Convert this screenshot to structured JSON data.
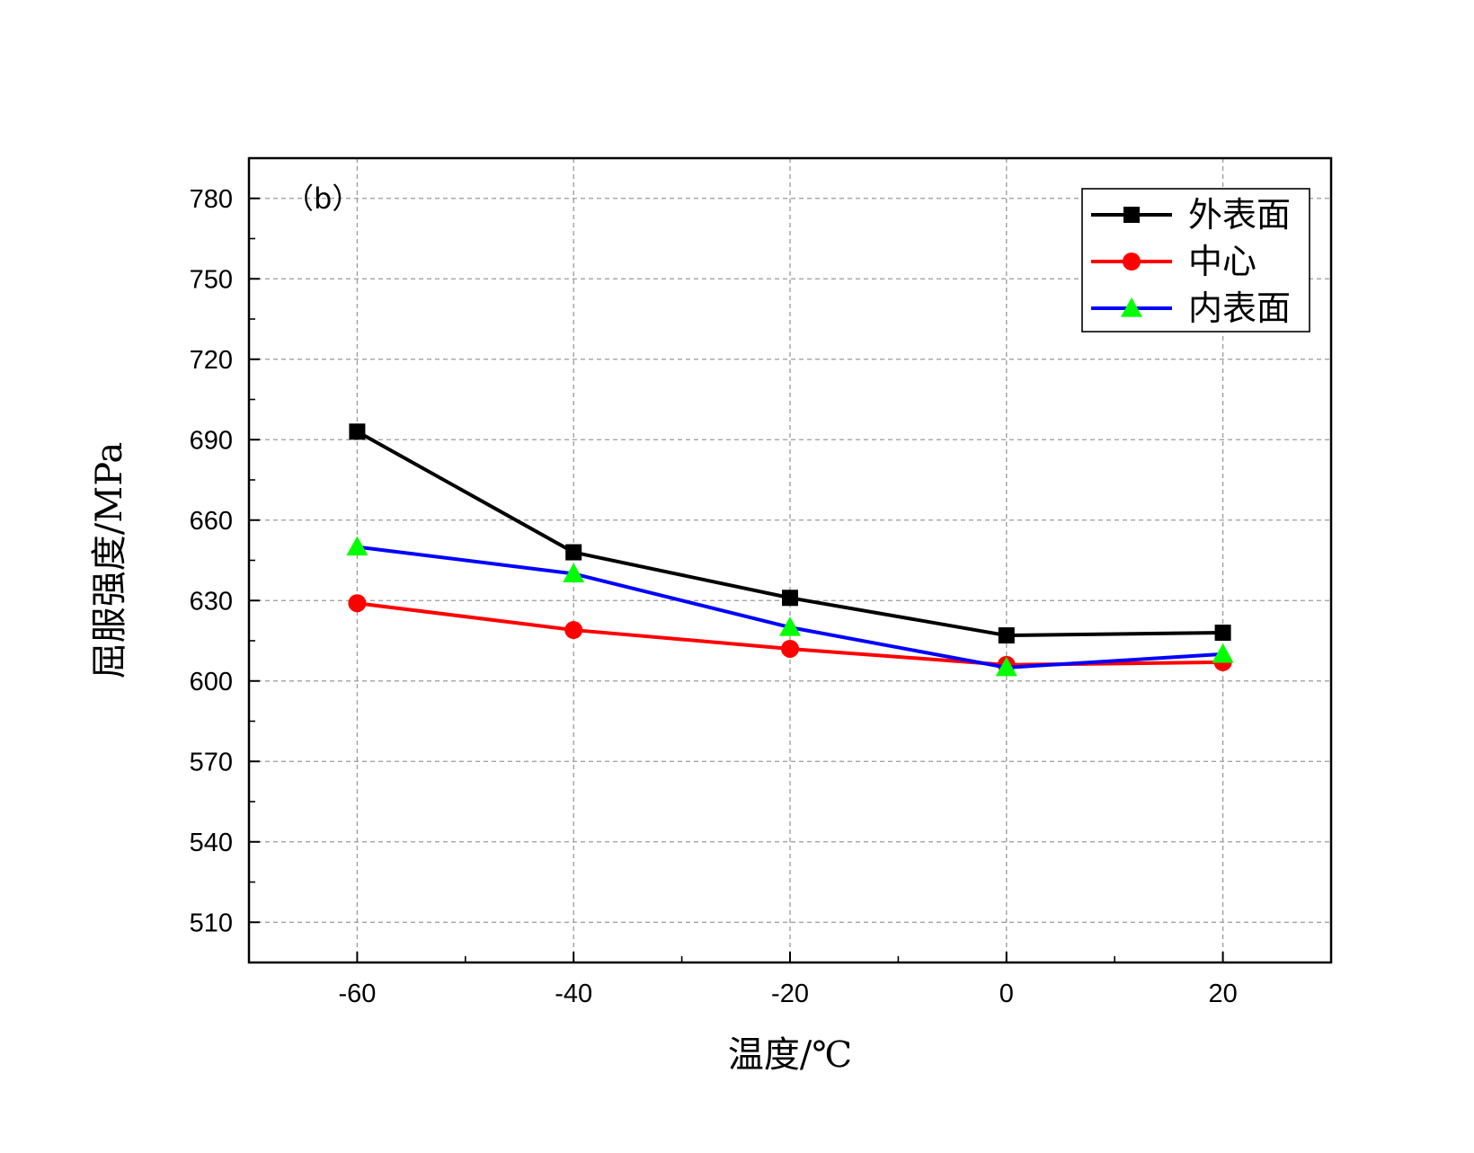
{
  "chart_data": {
    "type": "line",
    "panel_label": "（b）",
    "xlabel": "温度/℃",
    "ylabel": "屈服强度/MPa",
    "x": [
      -60,
      -40,
      -20,
      0,
      20
    ],
    "xlim": [
      -70,
      30
    ],
    "ylim": [
      495,
      795
    ],
    "xticks": [
      -60,
      -40,
      -20,
      0,
      20
    ],
    "yticks": [
      510,
      540,
      570,
      600,
      630,
      660,
      690,
      720,
      750,
      780
    ],
    "x_tick_labels": [
      "-60",
      "-40",
      "-20",
      "0",
      "20"
    ],
    "y_tick_labels": [
      "510",
      "540",
      "570",
      "600",
      "630",
      "660",
      "690",
      "720",
      "750",
      "780"
    ],
    "grid": true,
    "legend_position": "top-right",
    "series": [
      {
        "name": "外表面",
        "values": [
          693,
          648,
          631,
          617,
          618
        ],
        "color": "#000000",
        "marker_color": "#000000",
        "marker": "square"
      },
      {
        "name": "中心",
        "values": [
          629,
          619,
          612,
          606,
          607
        ],
        "color": "#ff0000",
        "marker_color": "#ff0000",
        "marker": "circle"
      },
      {
        "name": "内表面",
        "values": [
          650,
          640,
          620,
          605,
          610
        ],
        "color": "#0000ff",
        "marker_color": "#00ff00",
        "marker": "triangle"
      }
    ]
  }
}
